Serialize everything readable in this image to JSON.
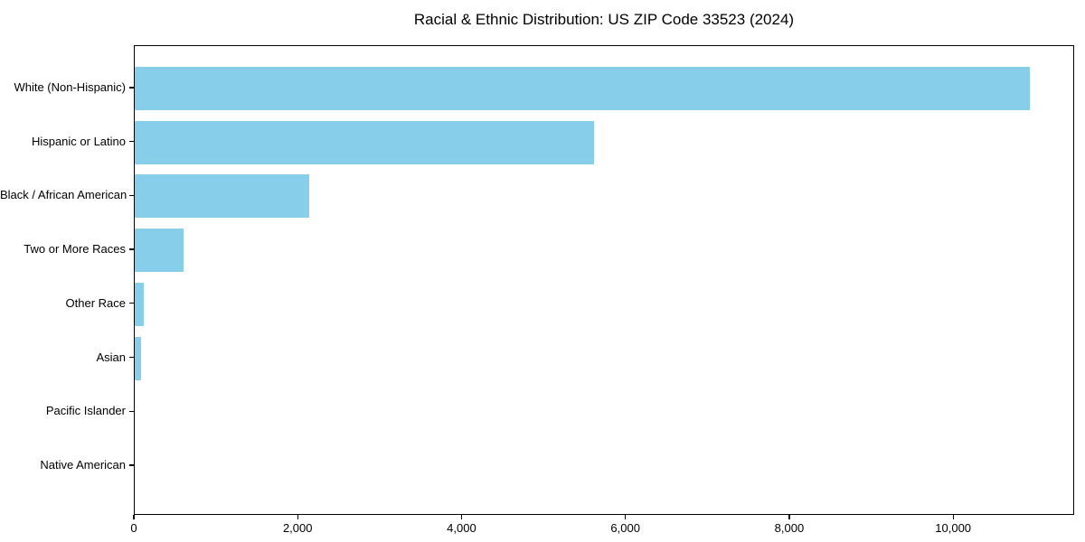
{
  "title": "Racial & Ethnic Distribution: US ZIP Code 33523 (2024)",
  "chart_data": {
    "type": "bar",
    "orientation": "horizontal",
    "title": "Racial & Ethnic Distribution: US ZIP Code 33523 (2024)",
    "categories": [
      "White (Non-Hispanic)",
      "Hispanic or Latino",
      "Black / African American",
      "Two or More Races",
      "Other Race",
      "Asian",
      "Pacific Islander",
      "Native American"
    ],
    "values": [
      10930,
      5610,
      2130,
      600,
      105,
      80,
      0,
      0
    ],
    "xlabel": "",
    "ylabel": "",
    "xlim": [
      0,
      11477
    ],
    "x_ticks": [
      0,
      2000,
      4000,
      6000,
      8000,
      10000
    ],
    "x_tick_labels": [
      "0",
      "2,000",
      "4,000",
      "6,000",
      "8,000",
      "10,000"
    ],
    "grid": false,
    "legend": "none",
    "bar_color": "#87CEEB",
    "axis_color": "#000000",
    "text_color": "#000000",
    "background_color": "#ffffff"
  }
}
